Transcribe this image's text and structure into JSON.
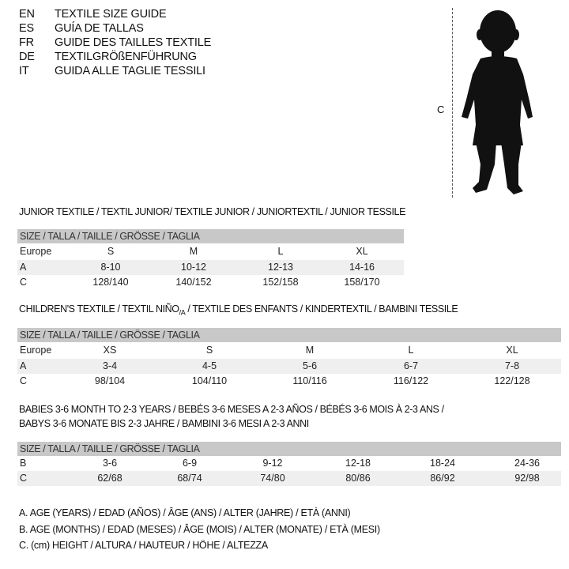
{
  "languages": [
    {
      "code": "EN",
      "text": "TEXTILE SIZE GUIDE"
    },
    {
      "code": "ES",
      "text": "GUÍA DE TALLAS"
    },
    {
      "code": "FR",
      "text": "GUIDE DES TAILLES TEXTILE"
    },
    {
      "code": "DE",
      "text": "TEXTILGRÖßENFÜHRUNG"
    },
    {
      "code": "IT",
      "text": "GUIDA ALLE TAGLIE TESSILI"
    }
  ],
  "figure": {
    "height_label": "C",
    "icon": "child-silhouette-icon"
  },
  "size_header": "SIZE / TALLA / TAILLE / GRÖSSE / TAGLIA",
  "junior": {
    "title": "JUNIOR TEXTILE / TEXTIL JUNIOR/ TEXTILE JUNIOR / JUNIORTEXTIL / JUNIOR TESSILE",
    "rows": [
      {
        "label": "Europe",
        "cells": [
          "S",
          "M",
          "L",
          "XL"
        ]
      },
      {
        "label": "A",
        "cells": [
          "8-10",
          "10-12",
          "12-13",
          "14-16"
        ]
      },
      {
        "label": "C",
        "cells": [
          "128/140",
          "140/152",
          "152/158",
          "158/170"
        ]
      }
    ]
  },
  "children": {
    "title_part1": "CHILDREN'S TEXTILE / TEXTIL NIÑO",
    "title_sub": "/A",
    "title_part2": " / TEXTILE DES ENFANTS / KINDERTEXTIL / BAMBINI TESSILE",
    "rows": [
      {
        "label": "Europe",
        "cells": [
          "XS",
          "S",
          "M",
          "L",
          "XL"
        ]
      },
      {
        "label": "A",
        "cells": [
          "3-4",
          "4-5",
          "5-6",
          "6-7",
          "7-8"
        ]
      },
      {
        "label": "C",
        "cells": [
          "98/104",
          "104/110",
          "110/116",
          "116/122",
          "122/128"
        ]
      }
    ]
  },
  "babies": {
    "title_line1": "BABIES 3-6 MONTH TO 2-3 YEARS / BEBÉS 3-6 MESES A 2-3 AÑOS / BÉBÉS 3-6 MOIS À 2-3 ANS /",
    "title_line2": "BABYS 3-6 MONATE BIS 2-3 JAHRE / BAMBINI 3-6 MESI A 2-3 ANNI",
    "rows": [
      {
        "label": "B",
        "cells": [
          "3-6",
          "6-9",
          "9-12",
          "12-18",
          "18-24",
          "24-36"
        ]
      },
      {
        "label": "C",
        "cells": [
          "62/68",
          "68/74",
          "74/80",
          "80/86",
          "86/92",
          "92/98"
        ]
      }
    ]
  },
  "legend": [
    "A. AGE (YEARS) / EDAD (AÑOS) / ÂGE (ANS) / ALTER (JAHRE) / ETÀ (ANNI)",
    "B. AGE (MONTHS) / EDAD (MESES) / ÂGE (MOIS) / ALTER (MONATE) / ETÀ (MESI)",
    "C. (cm) HEIGHT / ALTURA / HAUTEUR / HÖHE / ALTEZZA"
  ]
}
